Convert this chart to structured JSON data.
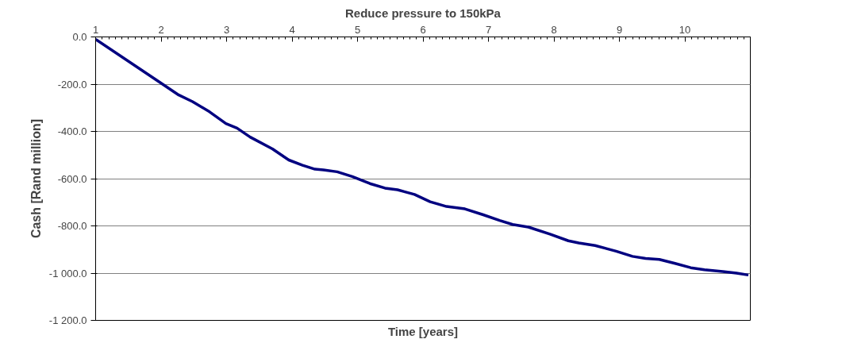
{
  "chart_data": {
    "type": "line",
    "title": "Reduce pressure to 150kPa",
    "xlabel": "Time [years]",
    "ylabel": "Cash [Rand million]",
    "xlim": [
      1,
      11
    ],
    "xticks": [
      1,
      2,
      3,
      4,
      5,
      6,
      7,
      8,
      9,
      10
    ],
    "ylim": [
      -1200,
      0
    ],
    "yticks": [
      {
        "value": 0,
        "label": "0.0"
      },
      {
        "value": -200,
        "label": "-200.0"
      },
      {
        "value": -400,
        "label": "-400.0"
      },
      {
        "value": -600,
        "label": "-600.0"
      },
      {
        "value": -800,
        "label": "-800.0"
      },
      {
        "value": -1000,
        "label": "-1 000.0"
      },
      {
        "value": -1200,
        "label": "-1 200.0"
      }
    ],
    "grid": "y",
    "marker": "none",
    "line_style": "solid",
    "series": [
      {
        "color": "#000080",
        "x": [
          1.0,
          2.0,
          2.27,
          2.48,
          2.74,
          2.99,
          3.16,
          3.36,
          3.7,
          3.95,
          4.16,
          4.35,
          4.48,
          4.69,
          4.92,
          5.19,
          5.42,
          5.61,
          5.87,
          6.11,
          6.36,
          6.64,
          6.92,
          7.17,
          7.37,
          7.61,
          7.94,
          8.22,
          8.38,
          8.63,
          8.95,
          9.2,
          9.4,
          9.61,
          9.85,
          10.09,
          10.3,
          10.58,
          10.79,
          10.97
        ],
        "values": [
          -10,
          -196,
          -246,
          -274,
          -317,
          -367,
          -386,
          -424,
          -474,
          -521,
          -543,
          -560,
          -563,
          -571,
          -591,
          -621,
          -640,
          -647,
          -667,
          -698,
          -718,
          -728,
          -753,
          -777,
          -794,
          -805,
          -835,
          -863,
          -872,
          -883,
          -907,
          -929,
          -938,
          -942,
          -959,
          -977,
          -986,
          -993,
          -1000,
          -1008
        ]
      }
    ]
  }
}
